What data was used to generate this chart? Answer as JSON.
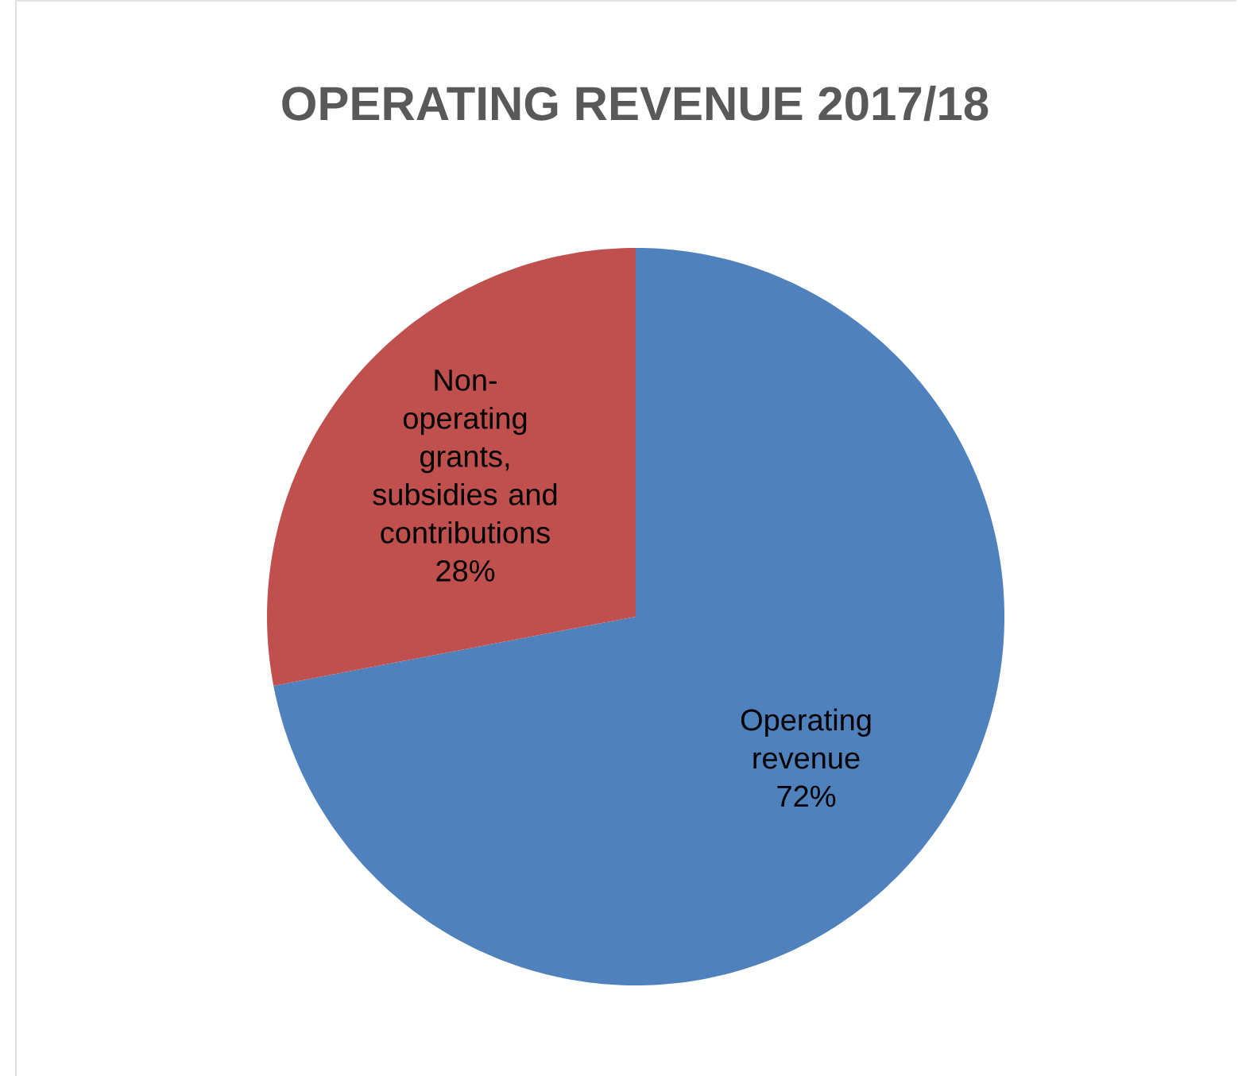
{
  "chart_data": {
    "type": "pie",
    "title": "OPERATING REVENUE 2017/18",
    "categories": [
      "Operating revenue",
      "Non-operating grants, subsidies and contributions"
    ],
    "values": [
      72,
      28
    ],
    "value_labels": [
      "72%",
      "28%"
    ],
    "colors": [
      "#4f81bd",
      "#c0504d"
    ]
  }
}
